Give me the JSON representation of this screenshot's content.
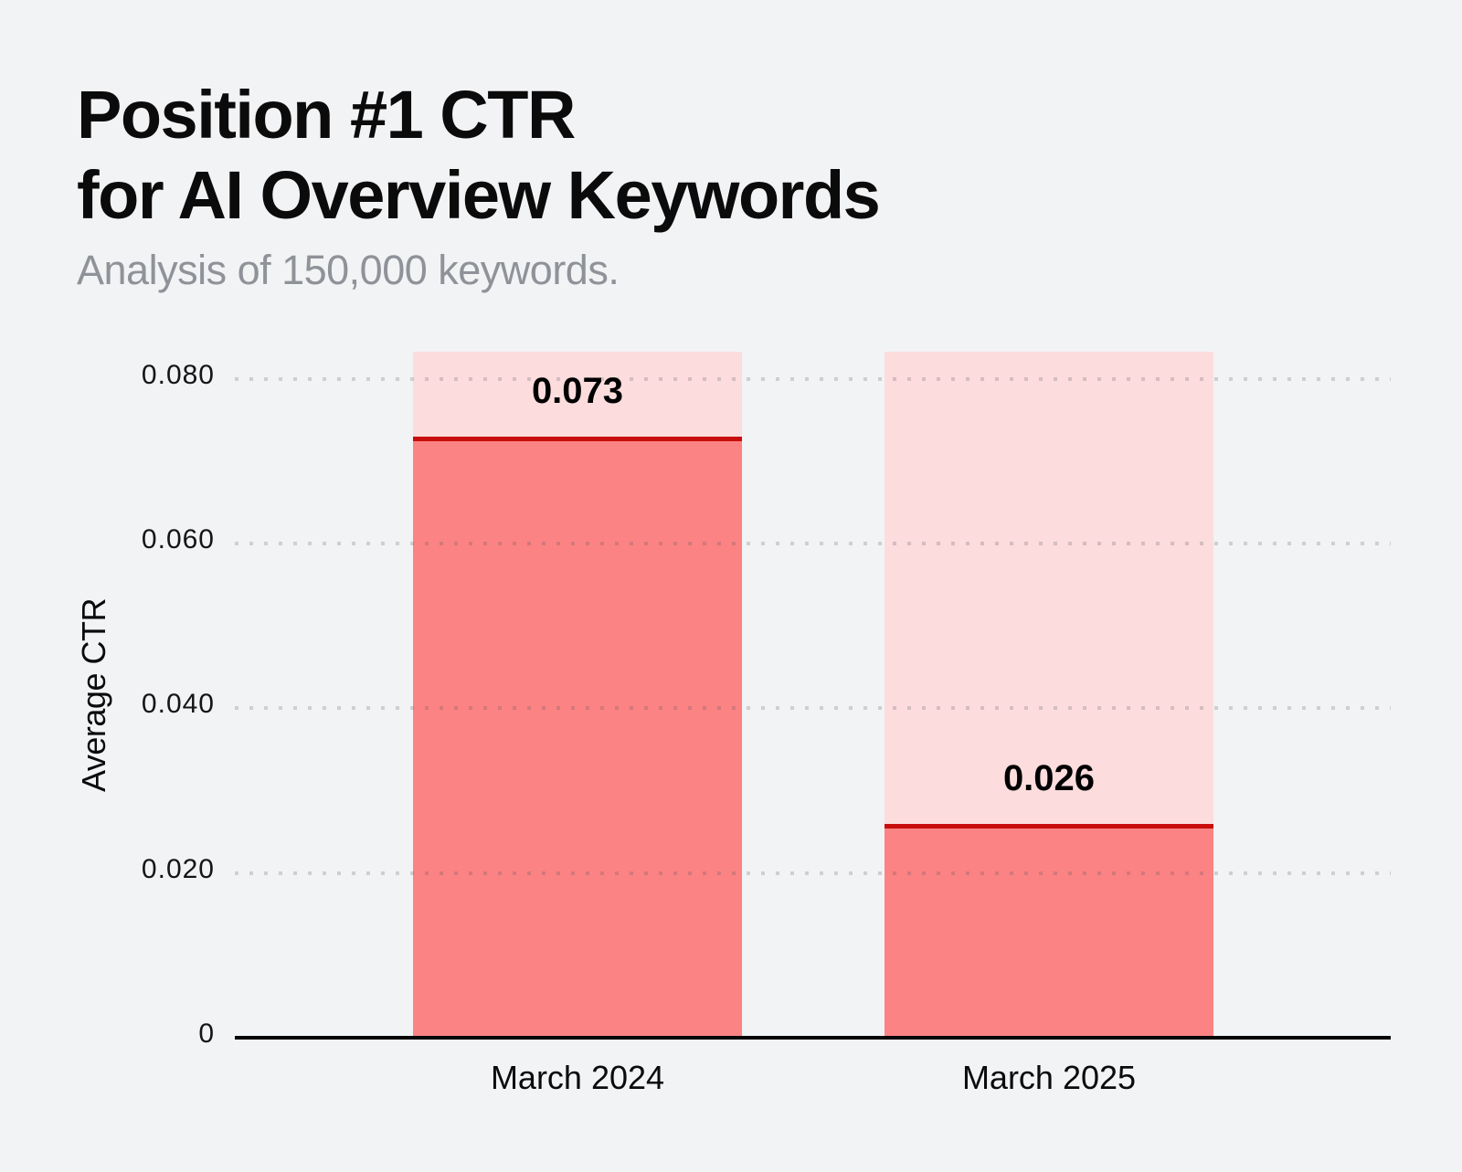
{
  "header": {
    "title_line1": "Position #1 CTR",
    "title_line2": "for AI Overview Keywords",
    "subtitle": "Analysis of 150,000 keywords."
  },
  "chart_data": {
    "type": "bar",
    "title": "Position #1 CTR for AI Overview Keywords",
    "subtitle": "Analysis of 150,000 keywords.",
    "categories": [
      "March 2024",
      "March 2025"
    ],
    "values": [
      0.073,
      0.026
    ],
    "value_labels": [
      "0.073",
      "0.026"
    ],
    "xlabel": "",
    "ylabel": "Average CTR",
    "ylim": [
      0,
      0.0833
    ],
    "yticks": [
      {
        "value": 0,
        "label": "0"
      },
      {
        "value": 0.02,
        "label": "0.020"
      },
      {
        "value": 0.04,
        "label": "0.040"
      },
      {
        "value": 0.06,
        "label": "0.060"
      },
      {
        "value": 0.08,
        "label": "0.080"
      }
    ],
    "grid": "horizontal dotted lines drawn over bars",
    "legend": "none",
    "bar_style": "full-height light-pink ghost bar behind each value bar; value bar has dark red top edge line; value label printed above the red line"
  },
  "colors": {
    "background": "#F2F3F5",
    "bar_ghost": "#FCDCDD",
    "bar_fill": "#FB8383",
    "bar_top_line": "#C80D0D",
    "axis_line": "#050505",
    "title_text": "#0B0B0B",
    "subtitle_text": "#8F9298",
    "tick_text": "#151515",
    "gridline_dots": "rgba(73,79,90,0.22)"
  }
}
